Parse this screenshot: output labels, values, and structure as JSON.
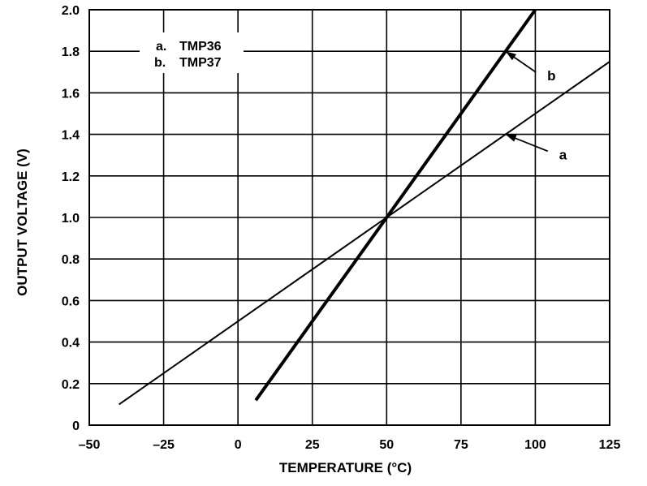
{
  "chart_data": {
    "type": "line",
    "title": "",
    "xlabel": "TEMPERATURE (°C)",
    "ylabel": "OUTPUT VOLTAGE (V)",
    "xlim": [
      -50,
      125
    ],
    "ylim": [
      0,
      2.0
    ],
    "x_ticks": [
      -50,
      -25,
      0,
      25,
      50,
      75,
      100,
      125
    ],
    "x_tick_labels": [
      "–50",
      "–25",
      "0",
      "25",
      "50",
      "75",
      "100",
      "125"
    ],
    "y_ticks": [
      0,
      0.2,
      0.4,
      0.6,
      0.8,
      1.0,
      1.2,
      1.4,
      1.6,
      1.8,
      2.0
    ],
    "y_tick_labels": [
      "0",
      "0.2",
      "0.4",
      "0.6",
      "0.8",
      "1.0",
      "1.2",
      "1.4",
      "1.6",
      "1.8",
      "2.0"
    ],
    "grid": true,
    "legend": {
      "placement": "top-left",
      "entries": [
        {
          "key": "a.",
          "label": "TMP36"
        },
        {
          "key": "b.",
          "label": "TMP37"
        }
      ]
    },
    "series": [
      {
        "callout": "a",
        "x": [
          -40,
          125
        ],
        "values": [
          0.1,
          1.75
        ],
        "thick": false,
        "callout_point": [
          90,
          1.4
        ],
        "callout_label_at": [
          108,
          1.28
        ]
      },
      {
        "callout": "b",
        "x": [
          6,
          100
        ],
        "values": [
          0.12,
          2.0
        ],
        "thick": true,
        "callout_point": [
          90,
          1.8
        ],
        "callout_label_at": [
          104,
          1.66
        ]
      }
    ]
  }
}
